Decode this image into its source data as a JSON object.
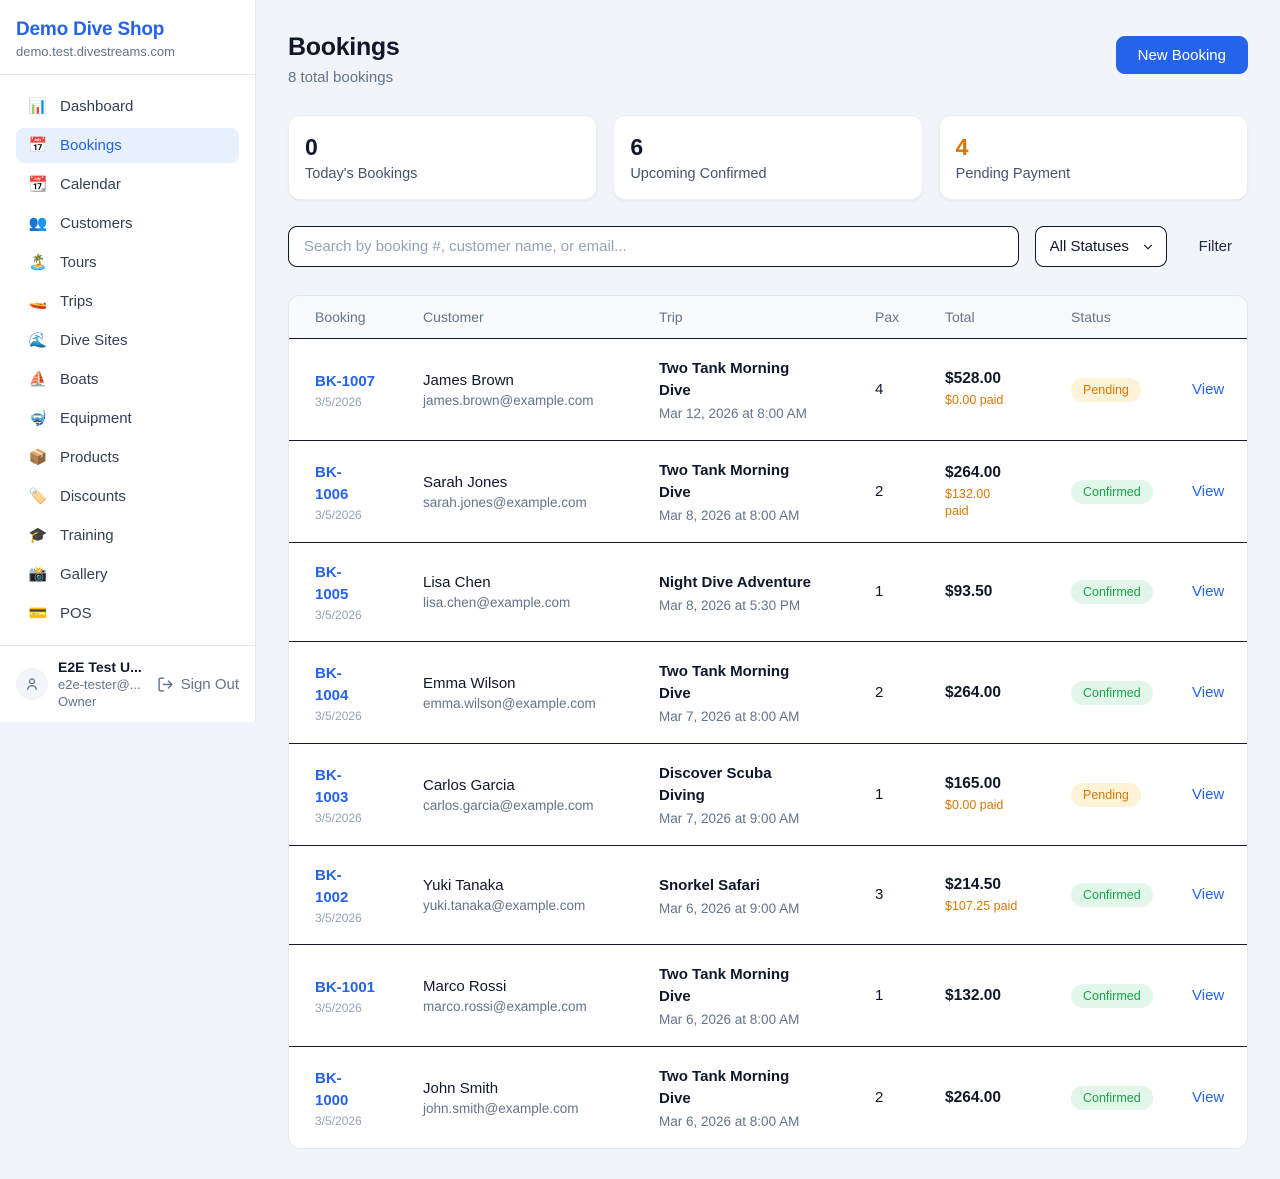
{
  "sidebar": {
    "shop_name": "Demo Dive Shop",
    "domain": "demo.test.divestreams.com",
    "items": [
      {
        "name": "dashboard",
        "label": "Dashboard",
        "icon_name": "bar-chart-icon",
        "icon_glyph": "📊",
        "active": false
      },
      {
        "name": "bookings",
        "label": "Bookings",
        "icon_name": "calendar-icon",
        "icon_glyph": "📅",
        "active": true
      },
      {
        "name": "calendar",
        "label": "Calendar",
        "icon_name": "tear-off-calendar-icon",
        "icon_glyph": "📆",
        "active": false
      },
      {
        "name": "customers",
        "label": "Customers",
        "icon_name": "people-icon",
        "icon_glyph": "👥",
        "active": false
      },
      {
        "name": "tours",
        "label": "Tours",
        "icon_name": "island-icon",
        "icon_glyph": "🏝️",
        "active": false
      },
      {
        "name": "trips",
        "label": "Trips",
        "icon_name": "speedboat-icon",
        "icon_glyph": "🚤",
        "active": false
      },
      {
        "name": "dive-sites",
        "label": "Dive Sites",
        "icon_name": "wave-icon",
        "icon_glyph": "🌊",
        "active": false
      },
      {
        "name": "boats",
        "label": "Boats",
        "icon_name": "sailboat-icon",
        "icon_glyph": "⛵",
        "active": false
      },
      {
        "name": "equipment",
        "label": "Equipment",
        "icon_name": "diving-mask-icon",
        "icon_glyph": "🤿",
        "active": false
      },
      {
        "name": "products",
        "label": "Products",
        "icon_name": "package-icon",
        "icon_glyph": "📦",
        "active": false
      },
      {
        "name": "discounts",
        "label": "Discounts",
        "icon_name": "label-tag-icon",
        "icon_glyph": "🏷️",
        "active": false
      },
      {
        "name": "training",
        "label": "Training",
        "icon_name": "graduation-cap-icon",
        "icon_glyph": "🎓",
        "active": false
      },
      {
        "name": "gallery",
        "label": "Gallery",
        "icon_name": "camera-icon",
        "icon_glyph": "📸",
        "active": false
      },
      {
        "name": "pos",
        "label": "POS",
        "icon_name": "credit-card-icon",
        "icon_glyph": "💳",
        "active": false
      }
    ],
    "user": {
      "name": "E2E Test U...",
      "email": "e2e-tester@...",
      "role": "Owner",
      "sign_out_label": "Sign Out"
    }
  },
  "header": {
    "title": "Bookings",
    "subtitle": "8 total bookings",
    "new_booking_label": "New Booking"
  },
  "stats": [
    {
      "value": "0",
      "label": "Today's Bookings",
      "value_color": "#0f172a"
    },
    {
      "value": "6",
      "label": "Upcoming Confirmed",
      "value_color": "#0f172a"
    },
    {
      "value": "4",
      "label": "Pending Payment",
      "value_color": "#d97706"
    }
  ],
  "filters": {
    "search_placeholder": "Search by booking #, customer name, or email...",
    "status_selected": "All Statuses",
    "filter_label": "Filter"
  },
  "table": {
    "columns": [
      "Booking",
      "Customer",
      "Trip",
      "Pax",
      "Total",
      "Status"
    ],
    "view_label": "View",
    "rows": [
      {
        "id": "BK-1007",
        "date": "3/5/2026",
        "customer": "James Brown",
        "email": "james.brown@example.com",
        "trip": "Two Tank Morning\nDive",
        "trip_time": "Mar 12, 2026 at 8:00 AM",
        "pax": "4",
        "total": "$528.00",
        "paid": "$0.00 paid",
        "status": "Pending"
      },
      {
        "id": "BK-\n1006",
        "date": "3/5/2026",
        "customer": "Sarah Jones",
        "email": "sarah.jones@example.com",
        "trip": "Two Tank Morning\nDive",
        "trip_time": "Mar 8, 2026 at 8:00 AM",
        "pax": "2",
        "total": "$264.00",
        "paid": "$132.00\npaid",
        "status": "Confirmed"
      },
      {
        "id": "BK-\n1005",
        "date": "3/5/2026",
        "customer": "Lisa Chen",
        "email": "lisa.chen@example.com",
        "trip": "Night Dive Adventure",
        "trip_time": "Mar 8, 2026 at 5:30 PM",
        "pax": "1",
        "total": "$93.50",
        "paid": null,
        "status": "Confirmed"
      },
      {
        "id": "BK-\n1004",
        "date": "3/5/2026",
        "customer": "Emma Wilson",
        "email": "emma.wilson@example.com",
        "trip": "Two Tank Morning\nDive",
        "trip_time": "Mar 7, 2026 at 8:00 AM",
        "pax": "2",
        "total": "$264.00",
        "paid": null,
        "status": "Confirmed"
      },
      {
        "id": "BK-\n1003",
        "date": "3/5/2026",
        "customer": "Carlos Garcia",
        "email": "carlos.garcia@example.com",
        "trip": "Discover Scuba\nDiving",
        "trip_time": "Mar 7, 2026 at 9:00 AM",
        "pax": "1",
        "total": "$165.00",
        "paid": "$0.00 paid",
        "status": "Pending"
      },
      {
        "id": "BK-\n1002",
        "date": "3/5/2026",
        "customer": "Yuki Tanaka",
        "email": "yuki.tanaka@example.com",
        "trip": "Snorkel Safari",
        "trip_time": "Mar 6, 2026 at 9:00 AM",
        "pax": "3",
        "total": "$214.50",
        "paid": "$107.25 paid",
        "status": "Confirmed"
      },
      {
        "id": "BK-1001",
        "date": "3/5/2026",
        "customer": "Marco Rossi",
        "email": "marco.rossi@example.com",
        "trip": "Two Tank Morning\nDive",
        "trip_time": "Mar 6, 2026 at 8:00 AM",
        "pax": "1",
        "total": "$132.00",
        "paid": null,
        "status": "Confirmed"
      },
      {
        "id": "BK-\n1000",
        "date": "3/5/2026",
        "customer": "John Smith",
        "email": "john.smith@example.com",
        "trip": "Two Tank Morning\nDive",
        "trip_time": "Mar 6, 2026 at 8:00 AM",
        "pax": "2",
        "total": "$264.00",
        "paid": null,
        "status": "Confirmed"
      }
    ]
  },
  "colors": {
    "primary_blue": "#2563eb",
    "pending_orange": "#d97706",
    "confirmed_green": "#16a34a",
    "pending_badge_bg": "#fdf3d8",
    "confirmed_badge_bg": "#e3f6ea"
  }
}
